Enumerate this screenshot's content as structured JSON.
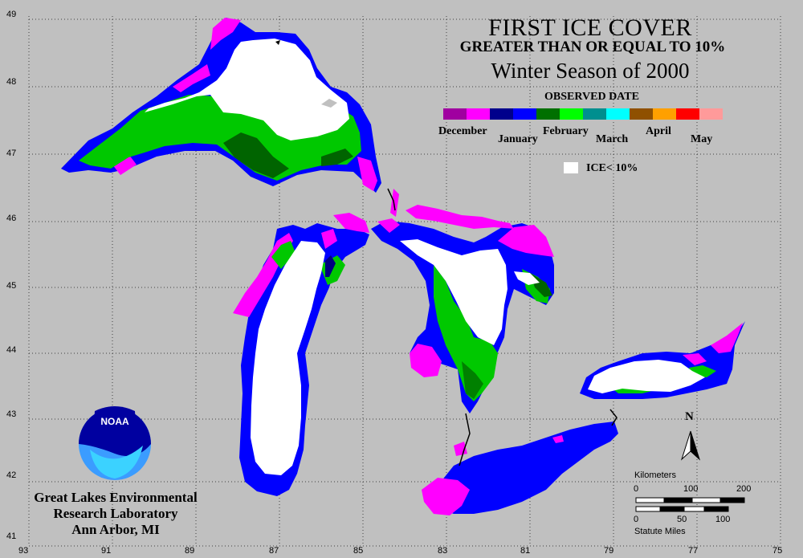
{
  "title": "FIRST ICE COVER",
  "subtitle": "GREATER THAN OR EQUAL TO 10%",
  "season": "Winter Season of 2000",
  "legend": {
    "heading": "OBSERVED DATE",
    "months": [
      "December",
      "January",
      "February",
      "March",
      "April",
      "May"
    ],
    "ramp_colors": [
      "#a000a0",
      "#ff00ff",
      "#00008c",
      "#0000ff",
      "#007000",
      "#00ff00",
      "#008f8f",
      "#00ffff",
      "#8f5000",
      "#ffa000",
      "#ff0000",
      "#ff9a9a"
    ],
    "ice_box_color": "#ffffff",
    "ice_label": "ICE< 10%"
  },
  "grid": {
    "lat_labels": [
      "49",
      "48",
      "47",
      "46",
      "45",
      "44",
      "43",
      "42",
      "41"
    ],
    "lon_labels": [
      "93",
      "91",
      "89",
      "87",
      "85",
      "83",
      "81",
      "79",
      "77",
      "75"
    ]
  },
  "organization": {
    "logo_text": "NOAA",
    "lines": [
      "Great Lakes Environmental",
      "Research Laboratory",
      "Ann Arbor, MI"
    ]
  },
  "scale": {
    "km_label": "Kilometers",
    "km_ticks": [
      "0",
      "100",
      "200"
    ],
    "mile_ticks": [
      "0",
      "50",
      "100"
    ],
    "mile_label": "Statute Miles"
  },
  "north_label": "N",
  "colors": {
    "background": "#c0c0c0",
    "no_ice": "#ffffff",
    "december": "#ff00ff",
    "january": "#0000ff",
    "february": "#00c800",
    "grid": "#404040"
  }
}
